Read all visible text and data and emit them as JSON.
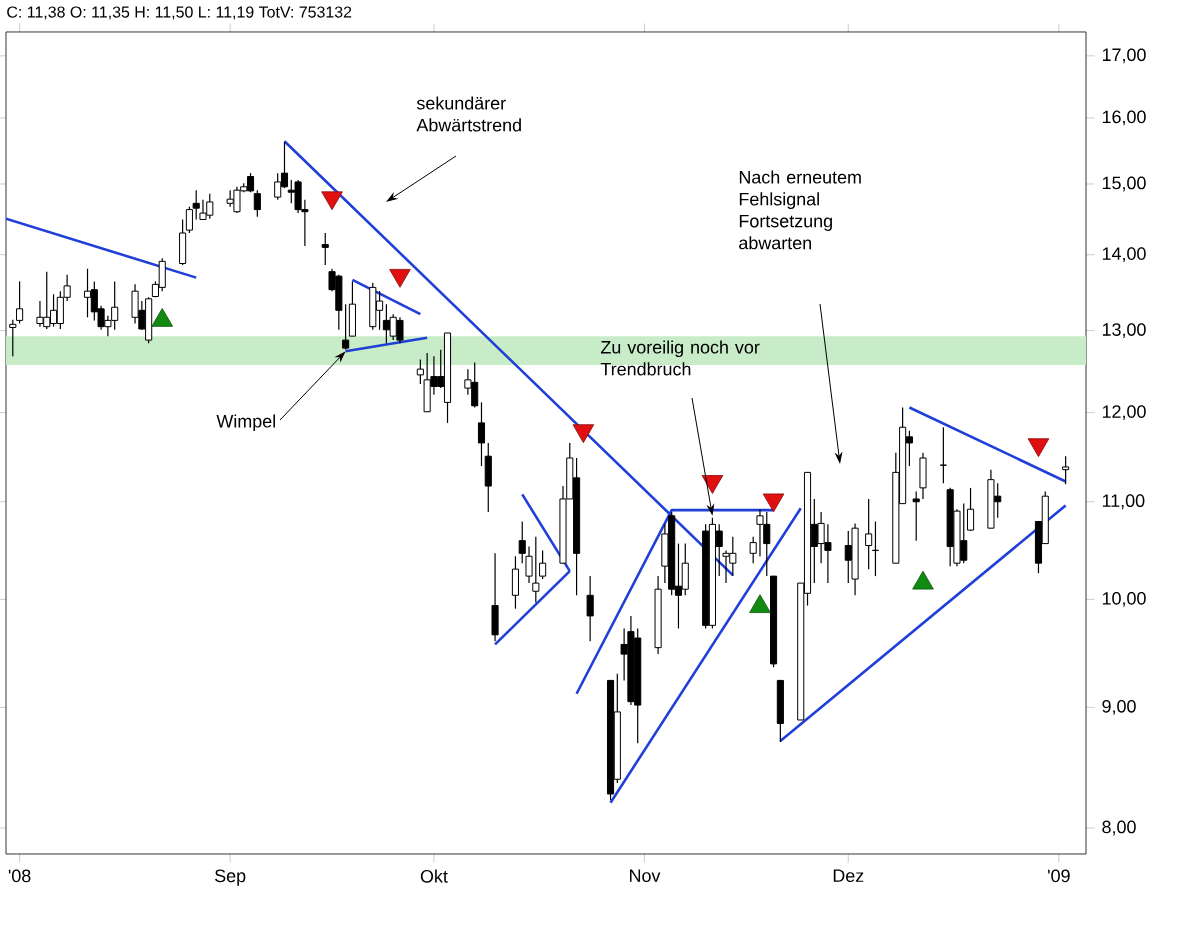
{
  "chart_data": {
    "type": "candlestick",
    "title": "C: 11,38 O: 11,35 H: 11,50 L: 11,19 TotV: 753132",
    "x": [
      "2008-07-31",
      "2008-08-01",
      "2008-08-04",
      "2008-08-05",
      "2008-08-06",
      "2008-08-07",
      "2008-08-08",
      "2008-08-11",
      "2008-08-12",
      "2008-08-13",
      "2008-08-14",
      "2008-08-15",
      "2008-08-18",
      "2008-08-19",
      "2008-08-20",
      "2008-08-21",
      "2008-08-22",
      "2008-08-25",
      "2008-08-26",
      "2008-08-27",
      "2008-08-28",
      "2008-08-29",
      "2008-09-01",
      "2008-09-02",
      "2008-09-03",
      "2008-09-04",
      "2008-09-05",
      "2008-09-08",
      "2008-09-09",
      "2008-09-10",
      "2008-09-11",
      "2008-09-12",
      "2008-09-15",
      "2008-09-16",
      "2008-09-17",
      "2008-09-18",
      "2008-09-19",
      "2008-09-22",
      "2008-09-23",
      "2008-09-24",
      "2008-09-25",
      "2008-09-26",
      "2008-09-29",
      "2008-09-30",
      "2008-10-01",
      "2008-10-02",
      "2008-10-03",
      "2008-10-06",
      "2008-10-07",
      "2008-10-08",
      "2008-10-09",
      "2008-10-10",
      "2008-10-13",
      "2008-10-14",
      "2008-10-15",
      "2008-10-16",
      "2008-10-17",
      "2008-10-20",
      "2008-10-21",
      "2008-10-22",
      "2008-10-24",
      "2008-10-27",
      "2008-10-28",
      "2008-10-29",
      "2008-10-30",
      "2008-10-31",
      "2008-11-03",
      "2008-11-04",
      "2008-11-05",
      "2008-11-06",
      "2008-11-07",
      "2008-11-10",
      "2008-11-11",
      "2008-11-12",
      "2008-11-13",
      "2008-11-14",
      "2008-11-17",
      "2008-11-18",
      "2008-11-19",
      "2008-11-20",
      "2008-11-21",
      "2008-11-24",
      "2008-11-25",
      "2008-11-26",
      "2008-11-27",
      "2008-11-28",
      "2008-12-01",
      "2008-12-02",
      "2008-12-04",
      "2008-12-05",
      "2008-12-08",
      "2008-12-09",
      "2008-12-10",
      "2008-12-11",
      "2008-12-12",
      "2008-12-15",
      "2008-12-16",
      "2008-12-17",
      "2008-12-18",
      "2008-12-19",
      "2008-12-22",
      "2008-12-23",
      "2008-12-29",
      "2008-12-30",
      "2009-01-02"
    ],
    "ohlc": [
      [
        13.04,
        13.14,
        12.68,
        13.08
      ],
      [
        13.13,
        13.64,
        13.09,
        13.28
      ],
      [
        13.09,
        13.38,
        13.05,
        13.17
      ],
      [
        13.05,
        13.77,
        13.02,
        13.17
      ],
      [
        13.09,
        13.47,
        13.05,
        13.26
      ],
      [
        13.09,
        13.51,
        13.02,
        13.43
      ],
      [
        13.43,
        13.73,
        13.38,
        13.58
      ],
      [
        13.43,
        13.81,
        13.17,
        13.51
      ],
      [
        13.53,
        13.64,
        13.13,
        13.24
      ],
      [
        13.28,
        13.32,
        13.01,
        13.05
      ],
      [
        13.05,
        13.19,
        12.93,
        13.13
      ],
      [
        13.13,
        13.64,
        13.01,
        13.3
      ],
      [
        13.17,
        13.6,
        13.09,
        13.51
      ],
      [
        13.26,
        13.38,
        13.01,
        13.02
      ],
      [
        12.88,
        13.43,
        12.84,
        13.41
      ],
      [
        13.44,
        13.64,
        13.43,
        13.6
      ],
      [
        13.56,
        13.95,
        13.51,
        13.91
      ],
      [
        13.88,
        14.49,
        13.86,
        14.3
      ],
      [
        14.34,
        14.67,
        14.3,
        14.63
      ],
      [
        14.72,
        14.91,
        14.49,
        14.65
      ],
      [
        14.49,
        14.77,
        14.49,
        14.58
      ],
      [
        14.55,
        14.86,
        14.5,
        14.74
      ],
      [
        14.72,
        14.91,
        14.67,
        14.78
      ],
      [
        14.6,
        14.96,
        14.58,
        14.91
      ],
      [
        14.9,
        15.01,
        14.88,
        14.96
      ],
      [
        15.11,
        15.16,
        14.88,
        14.9
      ],
      [
        14.86,
        14.91,
        14.53,
        14.63
      ],
      [
        14.81,
        15.16,
        14.77,
        15.03
      ],
      [
        15.16,
        15.63,
        14.94,
        14.96
      ],
      [
        14.91,
        15.06,
        14.72,
        14.88
      ],
      [
        15.03,
        15.06,
        14.58,
        14.63
      ],
      [
        14.63,
        14.77,
        14.12,
        14.6
      ],
      [
        14.14,
        14.3,
        13.86,
        14.1
      ],
      [
        13.77,
        13.81,
        13.51,
        13.53
      ],
      [
        13.71,
        13.73,
        13.01,
        13.26
      ],
      [
        12.88,
        13.34,
        12.76,
        12.78
      ],
      [
        12.93,
        13.64,
        12.93,
        13.34
      ],
      [
        13.05,
        13.62,
        13.01,
        13.56
      ],
      [
        13.26,
        13.51,
        13.01,
        13.38
      ],
      [
        13.13,
        13.34,
        12.84,
        13.01
      ],
      [
        12.93,
        13.21,
        12.88,
        13.17
      ],
      [
        13.13,
        13.17,
        12.84,
        12.88
      ],
      [
        12.45,
        12.64,
        12.34,
        12.52
      ],
      [
        12.01,
        12.72,
        12.01,
        12.39
      ],
      [
        12.43,
        12.68,
        12.21,
        12.31
      ],
      [
        12.43,
        12.76,
        12.29,
        12.31
      ],
      [
        12.12,
        12.97,
        11.88,
        12.97
      ],
      [
        12.29,
        12.52,
        12.21,
        12.39
      ],
      [
        12.36,
        12.6,
        12.06,
        12.08
      ],
      [
        11.88,
        12.12,
        11.39,
        11.65
      ],
      [
        11.5,
        11.65,
        10.89,
        11.17
      ],
      [
        9.94,
        10.46,
        9.6,
        9.66
      ],
      [
        10.04,
        10.43,
        9.91,
        10.3
      ],
      [
        10.59,
        10.79,
        10.36,
        10.46
      ],
      [
        10.23,
        10.53,
        10.16,
        10.43
      ],
      [
        10.08,
        10.63,
        9.97,
        10.16
      ],
      [
        10.23,
        10.49,
        10.2,
        10.36
      ],
      [
        10.36,
        11.17,
        10.36,
        11.03
      ],
      [
        11.03,
        11.65,
        11.03,
        11.48
      ],
      [
        11.26,
        11.48,
        10.04,
        10.46
      ],
      [
        10.04,
        10.23,
        9.6,
        9.84
      ],
      [
        9.24,
        9.24,
        8.22,
        8.27
      ],
      [
        8.39,
        9.3,
        8.36,
        8.96
      ],
      [
        9.57,
        9.72,
        9.24,
        9.48
      ],
      [
        9.69,
        9.84,
        9.02,
        9.05
      ],
      [
        9.63,
        9.72,
        8.69,
        9.02
      ],
      [
        9.54,
        10.23,
        9.48,
        10.1
      ],
      [
        10.33,
        10.76,
        10.16,
        10.66
      ],
      [
        10.85,
        10.89,
        10.04,
        10.1
      ],
      [
        10.13,
        10.56,
        9.72,
        10.04
      ],
      [
        10.1,
        10.56,
        10.04,
        10.36
      ],
      [
        10.69,
        10.76,
        9.72,
        9.75
      ],
      [
        9.75,
        10.83,
        9.72,
        10.76
      ],
      [
        10.69,
        10.76,
        10.23,
        10.53
      ],
      [
        10.43,
        10.49,
        10.16,
        10.46
      ],
      [
        10.36,
        10.63,
        10.23,
        10.46
      ],
      [
        10.46,
        10.63,
        10.36,
        10.57
      ],
      [
        10.76,
        10.92,
        10.43,
        10.85
      ],
      [
        10.76,
        10.89,
        10.23,
        10.56
      ],
      [
        10.23,
        10.23,
        9.36,
        9.39
      ],
      [
        9.24,
        9.24,
        8.7,
        8.86
      ],
      [
        8.89,
        10.16,
        8.89,
        10.16
      ],
      [
        10.06,
        11.32,
        9.94,
        11.32
      ],
      [
        10.76,
        11.03,
        10.16,
        10.53
      ],
      [
        10.56,
        10.89,
        10.36,
        10.77
      ],
      [
        10.57,
        10.76,
        10.16,
        10.49
      ],
      [
        10.54,
        10.69,
        10.16,
        10.39
      ],
      [
        10.2,
        10.77,
        10.04,
        10.72
      ],
      [
        10.54,
        11.03,
        10.3,
        10.66
      ],
      [
        10.49,
        10.79,
        10.23,
        10.49
      ],
      [
        10.36,
        11.54,
        10.36,
        11.32
      ],
      [
        10.98,
        12.06,
        10.98,
        11.83
      ],
      [
        11.72,
        11.79,
        11.39,
        11.65
      ],
      [
        11.03,
        11.11,
        10.59,
        11.0
      ],
      [
        11.15,
        11.54,
        11.03,
        11.48
      ],
      [
        11.4,
        11.83,
        11.2,
        11.4
      ],
      [
        11.13,
        11.15,
        10.33,
        10.53
      ],
      [
        10.36,
        10.92,
        10.33,
        10.9
      ],
      [
        10.59,
        10.98,
        10.36,
        10.39
      ],
      [
        10.7,
        11.15,
        10.69,
        10.92
      ],
      [
        10.72,
        11.35,
        10.72,
        11.24
      ],
      [
        11.06,
        11.2,
        10.83,
        11.0
      ],
      [
        10.79,
        10.79,
        10.26,
        10.36
      ],
      [
        10.56,
        11.11,
        10.56,
        11.06
      ],
      [
        11.35,
        11.5,
        11.19,
        11.38
      ]
    ],
    "series": [
      {
        "type": "line",
        "color": "#1f3fd8",
        "x": [
          "2008-07-30",
          "2008-08-27"
        ],
        "values": [
          14.5,
          13.69
        ]
      },
      {
        "type": "line",
        "color": "#1f3fd8",
        "x": [
          "2008-09-09",
          "2008-11-14"
        ],
        "values": [
          15.64,
          10.24
        ]
      },
      {
        "type": "line",
        "color": "#1f3fd8",
        "x": [
          "2008-09-19",
          "2008-09-29"
        ],
        "values": [
          13.66,
          13.21
        ]
      },
      {
        "type": "line",
        "color": "#1f3fd8",
        "x": [
          "2008-09-18",
          "2008-09-30"
        ],
        "values": [
          12.74,
          12.91
        ]
      },
      {
        "type": "line",
        "color": "#1f3fd8",
        "x": [
          "2008-10-14",
          "2008-10-21"
        ],
        "values": [
          11.08,
          10.28
        ]
      },
      {
        "type": "line",
        "color": "#1f3fd8",
        "x": [
          "2008-10-10",
          "2008-10-21"
        ],
        "values": [
          9.57,
          10.28
        ]
      },
      {
        "type": "line",
        "color": "#1f3fd8",
        "x": [
          "2008-10-22",
          "2008-11-05",
          "2008-11-20"
        ],
        "values": [
          9.12,
          10.91,
          10.91
        ]
      },
      {
        "type": "line",
        "color": "#1f3fd8",
        "x": [
          "2008-10-27",
          "2008-11-24"
        ],
        "values": [
          8.2,
          10.93
        ]
      },
      {
        "type": "line",
        "color": "#1f3fd8",
        "x": [
          "2008-11-21",
          "2009-01-02"
        ],
        "values": [
          8.71,
          10.96
        ]
      },
      {
        "type": "line",
        "color": "#1f3fd8",
        "x": [
          "2008-12-10",
          "2009-01-02"
        ],
        "values": [
          12.06,
          11.22
        ]
      },
      {
        "type": "scatter",
        "color": "#e01010",
        "marker": "triangle",
        "x": [
          "2008-09-16",
          "2008-09-26",
          "2008-10-23",
          "2008-11-11",
          "2008-11-20",
          "2008-12-29"
        ],
        "values": [
          14.8,
          13.72,
          11.79,
          11.22,
          11.02,
          11.63
        ]
      },
      {
        "type": "scatter",
        "color": "#108a10",
        "marker": "triangle",
        "x": [
          "2008-08-22",
          "2008-11-18",
          "2008-12-12"
        ],
        "values": [
          13.13,
          9.93,
          10.16
        ]
      }
    ],
    "bands": [
      {
        "axis": "y",
        "from": 12.57,
        "to": 12.93,
        "color": "#c8ecc8"
      }
    ],
    "xlim": [
      "2008-07-30",
      "2009-01-05"
    ],
    "ylim": [
      7.8,
      17.4
    ],
    "log": "y",
    "xticks": [
      {
        "value": "2008-08",
        "label": "'08"
      },
      {
        "value": "2008-09",
        "label": "Sep"
      },
      {
        "value": "2008-10",
        "label": "Okt"
      },
      {
        "value": "2008-11",
        "label": "Nov"
      },
      {
        "value": "2008-12",
        "label": "Dez"
      },
      {
        "value": "2009-01",
        "label": "'09"
      }
    ],
    "yticks": [
      {
        "value": 8,
        "label": "8,00"
      },
      {
        "value": 9,
        "label": "9,00"
      },
      {
        "value": 10,
        "label": "10,00"
      },
      {
        "value": 11,
        "label": "11,00"
      },
      {
        "value": 12,
        "label": "12,00"
      },
      {
        "value": 13,
        "label": "13,00"
      },
      {
        "value": 14,
        "label": "14,00"
      },
      {
        "value": 15,
        "label": "15,00"
      },
      {
        "value": 16,
        "label": "16,00"
      },
      {
        "value": 17,
        "label": "17,00"
      }
    ],
    "annotations": [
      "sekundärer Abwärtstrend",
      {
        "text": "Wimpel",
        "x": "2008-09-18",
        "y": 12.74
      },
      {
        "text": "Zu voreilig noch vor Trendbruch",
        "x": "2008-11-11",
        "y": 10.85
      },
      "Nach erneutem Fehlsignal Fortsetzung abwarten"
    ]
  }
}
